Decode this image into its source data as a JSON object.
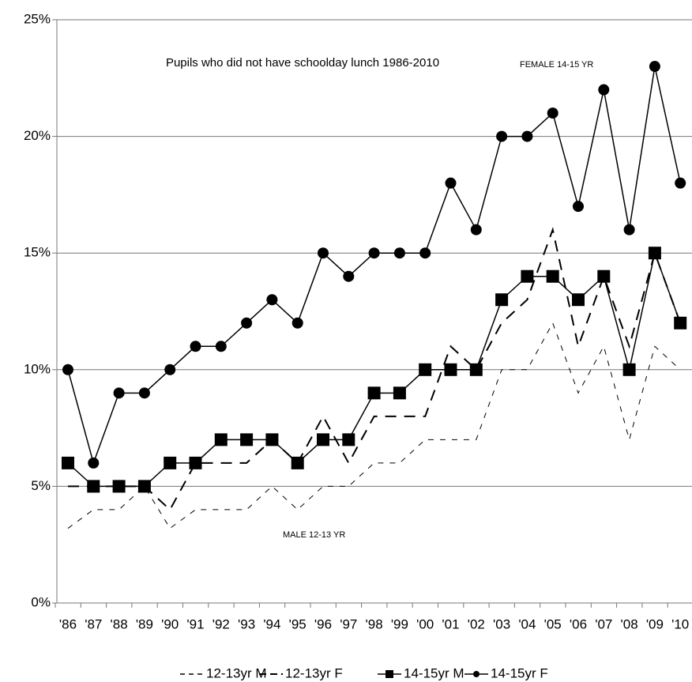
{
  "chart_data": {
    "type": "line",
    "annotations": [
      "Pupils who did not have schoolday lunch 1986-2010",
      "FEMALE 14-15 YR",
      "MALE 12-13 YR"
    ],
    "categories": [
      "'86",
      "'87",
      "'88",
      "'89",
      "'90",
      "'91",
      "'92",
      "'93",
      "'94",
      "'95",
      "'96",
      "'97",
      "'98",
      "'99",
      "'00",
      "'01",
      "'02",
      "'03",
      "'04",
      "'05",
      "'06",
      "'07",
      "'08",
      "'09",
      "'10"
    ],
    "series": [
      {
        "name": "12-13yr M",
        "color": "#000000",
        "dash": "dotted",
        "marker": "none",
        "values": [
          3.2,
          4,
          4,
          5,
          3.2,
          4,
          4,
          4,
          5,
          4,
          5,
          5,
          6,
          6,
          7,
          7,
          7,
          10,
          10,
          12,
          9,
          11,
          7,
          11,
          10
        ]
      },
      {
        "name": "12-13yr F",
        "color": "#000000",
        "dash": "dashed",
        "marker": "none",
        "values": [
          5,
          5,
          5,
          5,
          4,
          6,
          6,
          6,
          7,
          6,
          8,
          6,
          8,
          8,
          8,
          11,
          10,
          12,
          13,
          16,
          11,
          14,
          11,
          15,
          12
        ]
      },
      {
        "name": "14-15yr M",
        "color": "#000000",
        "dash": "solid",
        "marker": "square",
        "values": [
          6,
          5,
          5,
          5,
          6,
          6,
          7,
          7,
          7,
          6,
          7,
          7,
          9,
          9,
          10,
          10,
          10,
          13,
          14,
          14,
          13,
          14,
          10,
          15,
          12
        ]
      },
      {
        "name": "14-15yr F",
        "color": "#000000",
        "dash": "solid",
        "marker": "circle",
        "values": [
          10,
          6,
          9,
          9,
          10,
          11,
          11,
          12,
          13,
          12,
          15,
          14,
          15,
          15,
          15,
          18,
          16,
          20,
          20,
          21,
          17,
          22,
          16,
          23,
          18
        ]
      }
    ],
    "ylim": [
      0,
      25
    ],
    "yticks": [
      {
        "value": 0,
        "label": "0%"
      },
      {
        "value": 5,
        "label": "5%"
      },
      {
        "value": 10,
        "label": "10%"
      },
      {
        "value": 15,
        "label": "15%"
      },
      {
        "value": 20,
        "label": "20%"
      },
      {
        "value": 25,
        "label": "25%"
      }
    ],
    "grid": true,
    "legend": "bottom"
  }
}
